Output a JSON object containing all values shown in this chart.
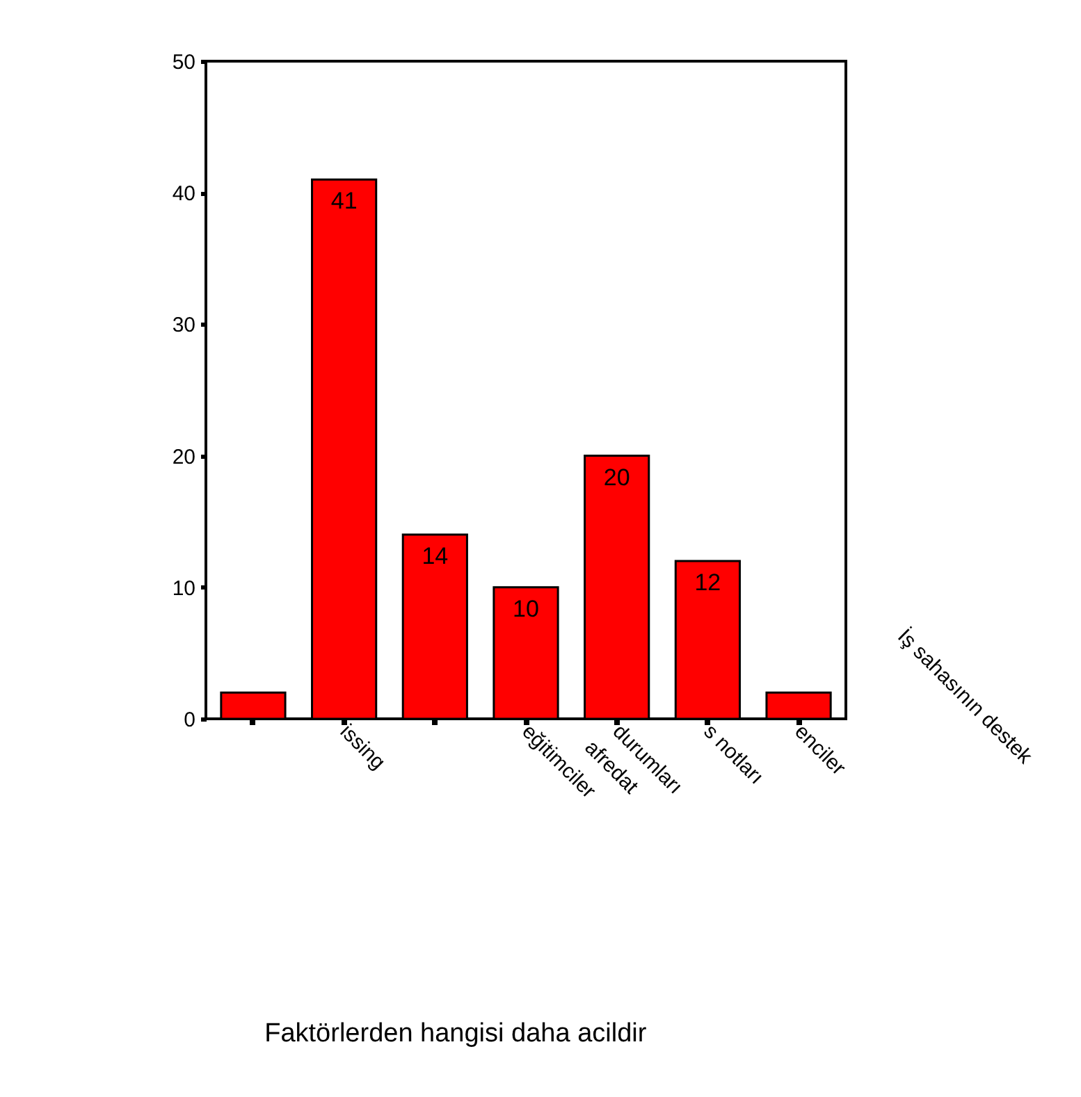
{
  "chart_data": {
    "type": "bar",
    "categories": [
      null,
      "issing",
      null,
      "eğitimciler",
      "durumları",
      "s notları",
      "enciler"
    ],
    "values": [
      2,
      41,
      14,
      10,
      20,
      12,
      2
    ],
    "value_labels": [
      null,
      "41",
      "14",
      "10",
      "20",
      "12",
      null
    ],
    "color": "#ff0000",
    "ylim": [
      0,
      50
    ],
    "yticks": [
      0,
      10,
      20,
      30,
      40,
      50
    ],
    "grid": false,
    "annotations": [
      "afredat",
      "İş sahasının destek",
      "Faktörlerden hangisi daha acildir"
    ]
  }
}
